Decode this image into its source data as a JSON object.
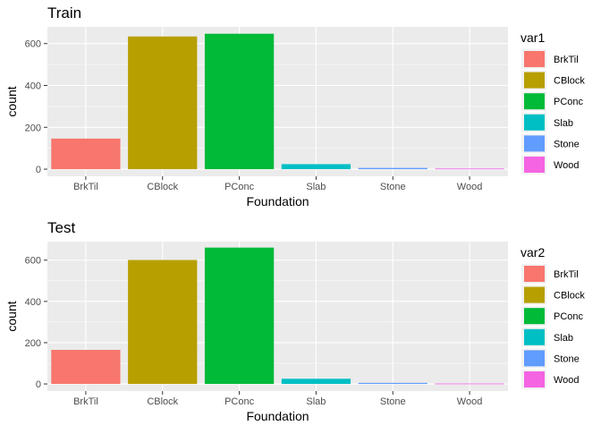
{
  "chart_data": [
    {
      "type": "bar",
      "title": "Train",
      "xlabel": "Foundation",
      "ylabel": "count",
      "categories": [
        "BrkTil",
        "CBlock",
        "PConc",
        "Slab",
        "Stone",
        "Wood"
      ],
      "values": [
        146,
        634,
        647,
        24,
        6,
        3
      ],
      "ylim": [
        0,
        680
      ],
      "yticks": [
        0,
        200,
        400,
        600
      ],
      "grid": true,
      "legend": {
        "title": "var1",
        "position": "right"
      }
    },
    {
      "type": "bar",
      "title": "Test",
      "xlabel": "Foundation",
      "ylabel": "count",
      "categories": [
        "BrkTil",
        "CBlock",
        "PConc",
        "Slab",
        "Stone",
        "Wood"
      ],
      "values": [
        165,
        601,
        661,
        25,
        5,
        2
      ],
      "ylim": [
        0,
        690
      ],
      "yticks": [
        0,
        200,
        400,
        600
      ],
      "grid": true,
      "legend": {
        "title": "var2",
        "position": "right"
      }
    }
  ],
  "colors": {
    "BrkTil": "#F8766D",
    "CBlock": "#B79F00",
    "PConc": "#00BA38",
    "Slab": "#00BFC4",
    "Stone": "#619CFF",
    "Wood": "#F564E3",
    "panel_background": "#EBEBEB",
    "grid_major": "#FFFFFF"
  }
}
